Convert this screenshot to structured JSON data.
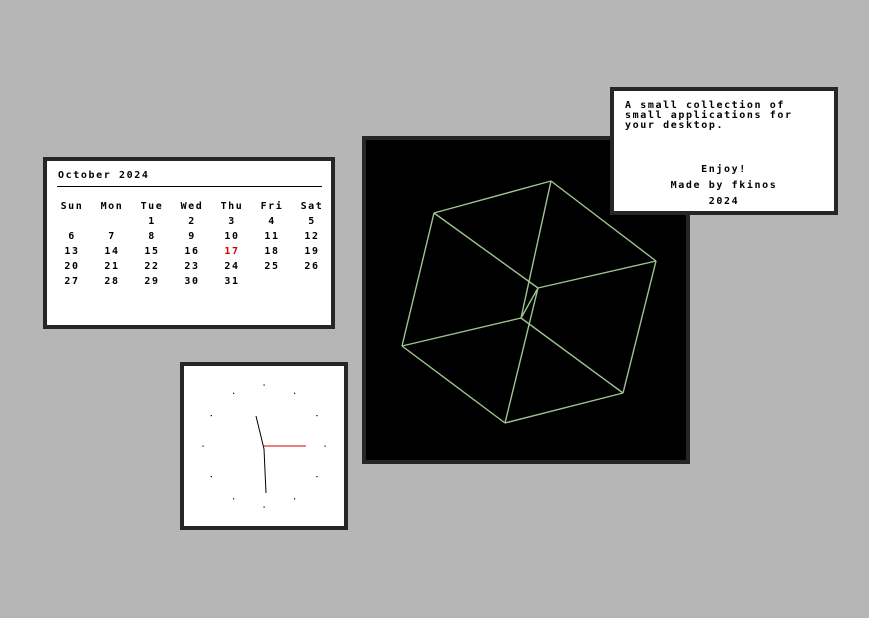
{
  "calendar": {
    "title": "October 2024",
    "weekdays": [
      "Sun",
      "Mon",
      "Tue",
      "Wed",
      "Thu",
      "Fri",
      "Sat"
    ],
    "weeks": [
      [
        "",
        "",
        "1",
        "2",
        "3",
        "4",
        "5"
      ],
      [
        "6",
        "7",
        "8",
        "9",
        "10",
        "11",
        "12"
      ],
      [
        "13",
        "14",
        "15",
        "16",
        "17",
        "18",
        "19"
      ],
      [
        "20",
        "21",
        "22",
        "23",
        "24",
        "25",
        "26"
      ],
      [
        "27",
        "28",
        "29",
        "30",
        "31",
        "",
        ""
      ]
    ],
    "today": "17",
    "today_color": "#d40000"
  },
  "clock": {
    "hour_hand": "second-hand-color",
    "second_hand_color": "#d40000"
  },
  "cube": {
    "line_color": "#9ec48f",
    "background": "#000000"
  },
  "about": {
    "description": "A small collection of\nsmall applications for\nyour desktop.",
    "enjoy": "Enjoy!",
    "credit": "Made by fkinos",
    "year": "2024"
  },
  "colors": {
    "desktop": "#b6b6b6",
    "window_border": "#262626"
  }
}
